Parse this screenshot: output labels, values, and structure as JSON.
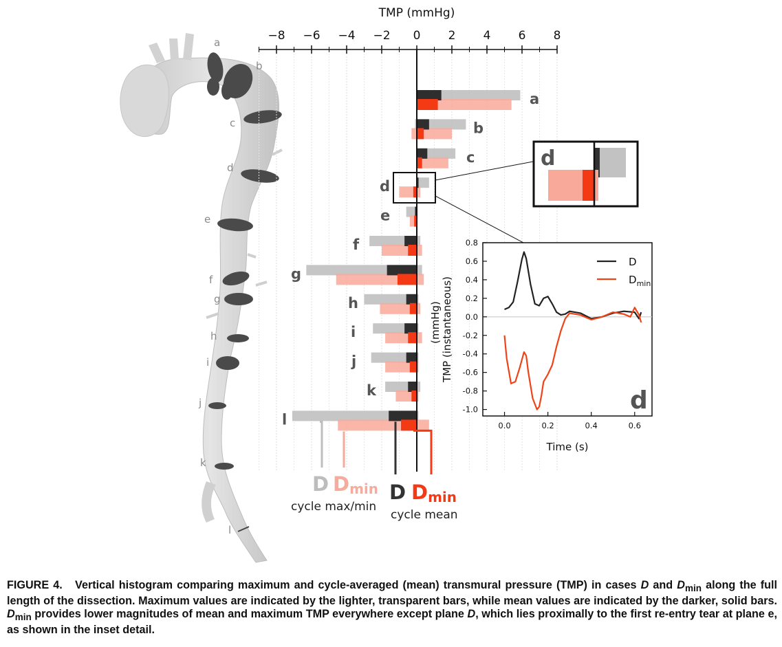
{
  "chart_data": [
    {
      "type": "bar",
      "orientation": "horizontal",
      "xlabel": "TMP (mmHg)",
      "xlim": [
        -8,
        8
      ],
      "xticks": [
        -8,
        -6,
        -4,
        -2,
        0,
        2,
        4,
        6,
        8
      ],
      "xtick_labels": [
        "−8",
        "−6",
        "−4",
        "−2",
        "0",
        "2",
        "4",
        "6",
        "8"
      ],
      "categories": [
        "a",
        "b",
        "c",
        "d",
        "e",
        "f",
        "g",
        "h",
        "i",
        "j",
        "k",
        "l"
      ],
      "series": [
        {
          "name": "D",
          "stat": "cycle max/min",
          "min": [
            0,
            -0.1,
            0,
            0,
            -0.6,
            -2.7,
            -6.3,
            -3.0,
            -2.5,
            -2.6,
            -1.8,
            -7.1
          ],
          "max": [
            5.9,
            2.8,
            2.2,
            0.7,
            0,
            0.2,
            0.3,
            0.1,
            0.1,
            0.1,
            0.2,
            0.1
          ]
        },
        {
          "name": "Dmin",
          "stat": "cycle max/min",
          "min": [
            0,
            -0.3,
            0,
            -1.0,
            -0.4,
            -2.0,
            -4.6,
            -2.1,
            -1.8,
            -1.8,
            -1.2,
            -4.5
          ],
          "max": [
            5.4,
            2.0,
            1.8,
            0.2,
            0,
            0.3,
            0.4,
            0.2,
            0.3,
            0.1,
            0.1,
            0.7
          ]
        },
        {
          "name": "D",
          "stat": "cycle mean",
          "values": [
            1.4,
            0.7,
            0.6,
            0.1,
            -0.1,
            -0.7,
            -1.7,
            -0.6,
            -0.7,
            -0.6,
            -0.5,
            -1.6
          ]
        },
        {
          "name": "Dmin",
          "stat": "cycle mean",
          "values": [
            1.2,
            0.4,
            0.3,
            -0.2,
            -0.15,
            -0.5,
            -1.1,
            -0.4,
            -0.5,
            -0.4,
            -0.3,
            -0.9
          ]
        }
      ],
      "legend": {
        "d_light": "D",
        "dmin_light_main": "D",
        "dmin_light_sub": "min",
        "maxmin_caption": "cycle max/min",
        "d_dark": "D",
        "dmin_dark_main": "D",
        "dmin_dark_sub": "min",
        "mean_caption": "cycle mean"
      },
      "colors": {
        "d_light": "#bcbcbc",
        "dmin_light": "#f8a99a",
        "d_dark": "#2e2e2e",
        "dmin_dark": "#f43a14",
        "label_gray": "#555555"
      },
      "zoom_inset_label": "d"
    },
    {
      "type": "line",
      "panel_label": "d",
      "xlabel": "Time (s)",
      "ylabel_line1": "TMP (instantaneous)",
      "ylabel_line2": "(mmHg)",
      "xlim": [
        -0.1,
        0.68
      ],
      "ylim": [
        -1.07,
        0.8
      ],
      "xticks": [
        0.0,
        0.2,
        0.4,
        0.6
      ],
      "xtick_labels": [
        "0.0",
        "0.2",
        "0.4",
        "0.6"
      ],
      "yticks": [
        0.8,
        0.6,
        0.4,
        0.2,
        0.0,
        -0.2,
        -0.4,
        -0.6,
        -0.8,
        -1.0
      ],
      "ytick_labels": [
        "0.8",
        "0.6",
        "0.4",
        "0.2",
        "0.0",
        "-0.2",
        "-0.4",
        "-0.6",
        "-0.8",
        "-1.0"
      ],
      "legend": {
        "d": "D",
        "dmin_main": "D",
        "dmin_sub": "min"
      },
      "legend_position": "top-right",
      "series": [
        {
          "name": "D",
          "color": "#222222",
          "x": [
            0.0,
            0.02,
            0.04,
            0.06,
            0.08,
            0.09,
            0.1,
            0.12,
            0.14,
            0.16,
            0.18,
            0.2,
            0.22,
            0.24,
            0.26,
            0.28,
            0.3,
            0.35,
            0.4,
            0.45,
            0.5,
            0.55,
            0.6,
            0.62,
            0.63
          ],
          "y": [
            0.08,
            0.1,
            0.16,
            0.38,
            0.62,
            0.7,
            0.63,
            0.35,
            0.14,
            0.12,
            0.2,
            0.22,
            0.14,
            0.05,
            0.02,
            0.03,
            0.06,
            0.04,
            -0.02,
            0.0,
            0.04,
            0.06,
            0.05,
            -0.02,
            0.05
          ]
        },
        {
          "name": "Dmin",
          "color": "#ef4317",
          "x": [
            0.0,
            0.01,
            0.03,
            0.05,
            0.07,
            0.09,
            0.1,
            0.11,
            0.13,
            0.15,
            0.16,
            0.17,
            0.18,
            0.2,
            0.22,
            0.24,
            0.26,
            0.28,
            0.3,
            0.35,
            0.4,
            0.45,
            0.5,
            0.55,
            0.58,
            0.6,
            0.62,
            0.63
          ],
          "y": [
            -0.2,
            -0.45,
            -0.72,
            -0.7,
            -0.55,
            -0.38,
            -0.42,
            -0.6,
            -0.88,
            -1.0,
            -0.97,
            -0.85,
            -0.7,
            -0.62,
            -0.52,
            -0.32,
            -0.15,
            -0.02,
            0.04,
            0.02,
            -0.03,
            0.0,
            0.05,
            0.03,
            0.0,
            0.1,
            0.02,
            -0.06
          ]
        }
      ]
    }
  ],
  "anatomy": {
    "plane_labels": [
      "a",
      "b",
      "c",
      "d",
      "e",
      "f",
      "g",
      "h",
      "i",
      "j",
      "k",
      "l"
    ]
  },
  "caption": {
    "lead": "FIGURE 4.",
    "t1": "Vertical histogram comparing maximum and cycle-averaged (mean) transmural pressure (TMP) in cases ",
    "d1": "D",
    "t2": " and ",
    "dmin2": "D",
    "dmin2_sub": "min",
    "t3": " along the full length of the dissection. Maximum values are indicated by the lighter, transparent bars, while mean values are indicated by the darker, solid bars. ",
    "dmin3": "D",
    "dmin3_sub": "min",
    "t4": " provides lower magnitudes of mean and maximum TMP everywhere except plane ",
    "d4": "D",
    "t5": ", which lies proximally to the first re-entry tear at plane e, as shown in the inset detail."
  }
}
